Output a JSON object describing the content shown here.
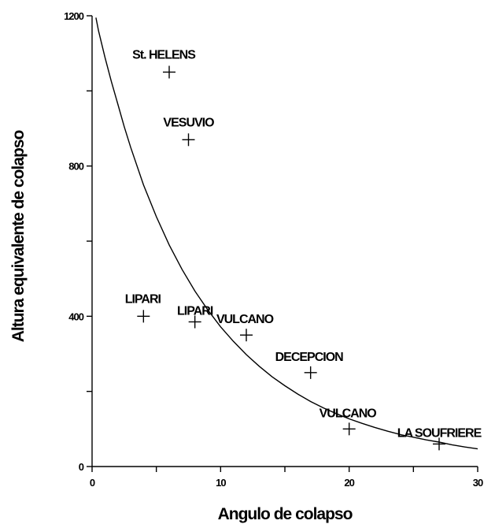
{
  "chart_data": {
    "type": "scatter",
    "xlabel": "Angulo de colapso",
    "ylabel": "Altura equivalente de colapso",
    "xlim": [
      0,
      30
    ],
    "ylim": [
      0,
      1200
    ],
    "x_ticks": [
      0,
      5,
      10,
      15,
      20,
      25,
      30
    ],
    "x_tick_labels": [
      "0",
      "",
      "10",
      "",
      "20",
      "",
      "30"
    ],
    "y_ticks": [
      0,
      200,
      400,
      600,
      800,
      1000,
      1200
    ],
    "y_tick_labels": [
      "0",
      "",
      "400",
      "",
      "800",
      "",
      "1200"
    ],
    "grid": false,
    "marker": "plus",
    "series": [
      {
        "points": [
          {
            "label": "St. HELENS",
            "x": 6.0,
            "y": 1050
          },
          {
            "label": "VESUVIO",
            "x": 7.5,
            "y": 870
          },
          {
            "label": "LIPARI",
            "x": 4.0,
            "y": 400
          },
          {
            "label": "LIPARI",
            "x": 8.0,
            "y": 385
          },
          {
            "label": "VULCANO",
            "x": 12.0,
            "y": 350
          },
          {
            "label": "DECEPCION",
            "x": 17.0,
            "y": 250
          },
          {
            "label": "VULCANO",
            "x": 20.0,
            "y": 100
          },
          {
            "label": "LA SOUFRIERE",
            "x": 27.0,
            "y": 60
          }
        ]
      }
    ],
    "curve": {
      "type": "line",
      "x": [
        0.3,
        0.5,
        1,
        1.5,
        2,
        2.5,
        3,
        4,
        5,
        6,
        7,
        8,
        9,
        10,
        11,
        12,
        13,
        14,
        15,
        16,
        17,
        18,
        19,
        20,
        21,
        22,
        23,
        24,
        25,
        26,
        27,
        28,
        29,
        30
      ],
      "y": [
        1195,
        1160,
        1090,
        1025,
        965,
        905,
        850,
        750,
        665,
        590,
        525,
        467,
        417,
        372,
        333,
        298,
        267,
        239,
        215,
        193,
        173,
        156,
        141,
        127,
        115,
        104,
        94,
        85,
        78,
        71,
        65,
        58,
        52,
        47
      ]
    }
  }
}
